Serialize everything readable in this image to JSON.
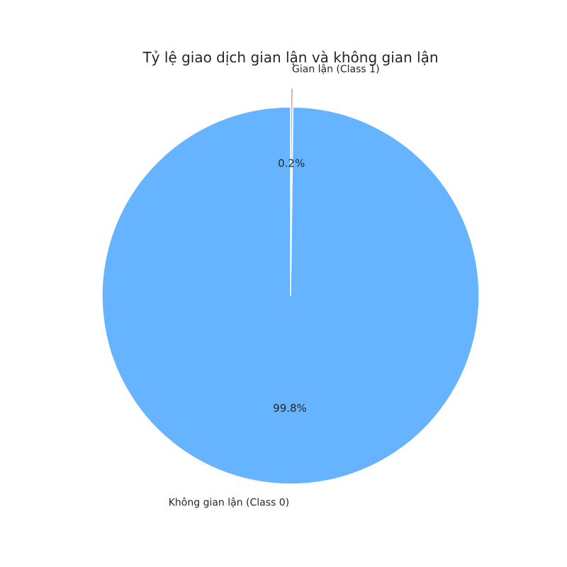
{
  "chart_data": {
    "type": "pie",
    "title": "Tỷ lệ giao dịch gian lận và không gian lận",
    "slices": [
      {
        "label": "Không gian lận (Class 0)",
        "value": 99.8,
        "pct_label": "99.8%",
        "color": "#66b3ff",
        "exploded": false
      },
      {
        "label": "Gian lận (Class 1)",
        "value": 0.2,
        "pct_label": "0.2%",
        "color": "#ff9999",
        "exploded": true
      }
    ],
    "start_angle_deg": 90,
    "direction": "counterclockwise",
    "legend": "none",
    "grid": false
  }
}
